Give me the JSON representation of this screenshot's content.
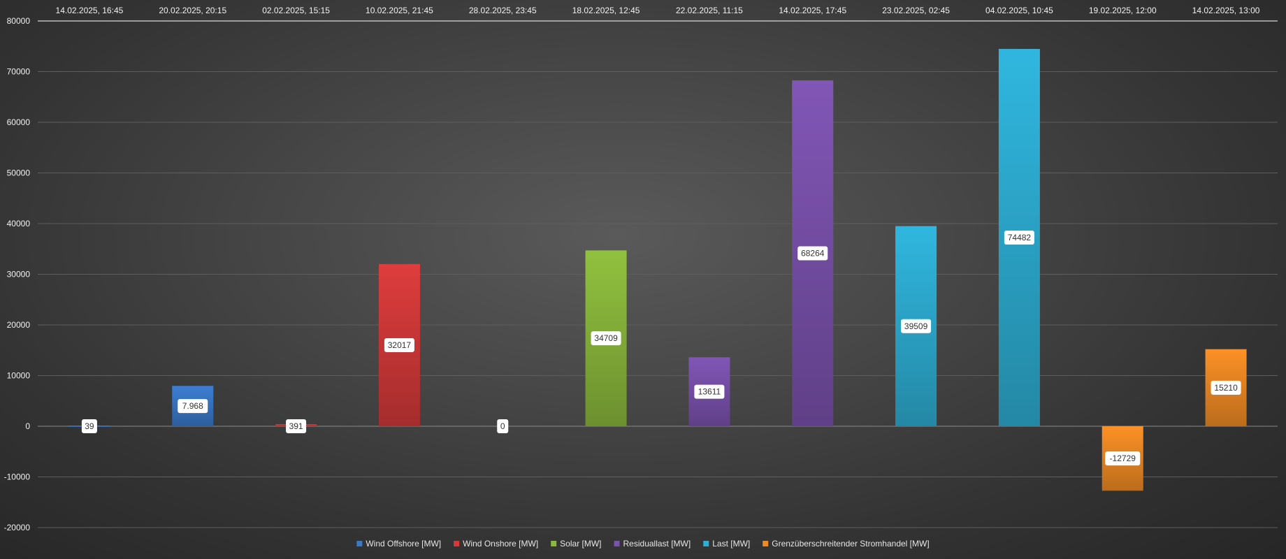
{
  "chart_data": {
    "type": "bar",
    "categories": [
      "14.02.2025, 16:45",
      "20.02.2025, 20:15",
      "02.02.2025, 15:15",
      "10.02.2025, 21:45",
      "28.02.2025, 23:45",
      "18.02.2025, 12:45",
      "22.02.2025, 11:15",
      "14.02.2025, 17:45",
      "23.02.2025, 02:45",
      "04.02.2025, 10:45",
      "19.02.2025, 12:00",
      "14.02.2025, 13:00"
    ],
    "values": [
      39,
      7968,
      391,
      32017,
      0,
      34709,
      13611,
      68264,
      39509,
      74482,
      -12729,
      15210
    ],
    "data_labels": [
      "39",
      "7.968",
      "391",
      "32017",
      "0",
      "34709",
      "13611",
      "68264",
      "39509",
      "74482",
      "-12729",
      "15210"
    ],
    "bar_series": [
      0,
      0,
      1,
      1,
      2,
      2,
      3,
      3,
      4,
      4,
      5,
      5
    ],
    "series": [
      {
        "name": "Wind Offshore [MW]",
        "color": "#3a78c8"
      },
      {
        "name": "Wind Onshore [MW]",
        "color": "#d43a3a"
      },
      {
        "name": "Solar [MW]",
        "color": "#8ab83c"
      },
      {
        "name": "Residuallast [MW]",
        "color": "#7b52ad"
      },
      {
        "name": "Last [MW]",
        "color": "#2eaed4"
      },
      {
        "name": "Grenzüberschreitender Stromhandel [MW]",
        "color": "#f08a24"
      }
    ],
    "ylim": [
      -20000,
      80000
    ],
    "yticks": [
      80000,
      70000,
      60000,
      50000,
      40000,
      30000,
      20000,
      10000,
      0,
      -10000,
      -20000
    ],
    "xaxis_position": "top",
    "grid": true,
    "legend_position": "bottom-center",
    "title": "",
    "xlabel": "",
    "ylabel": ""
  }
}
